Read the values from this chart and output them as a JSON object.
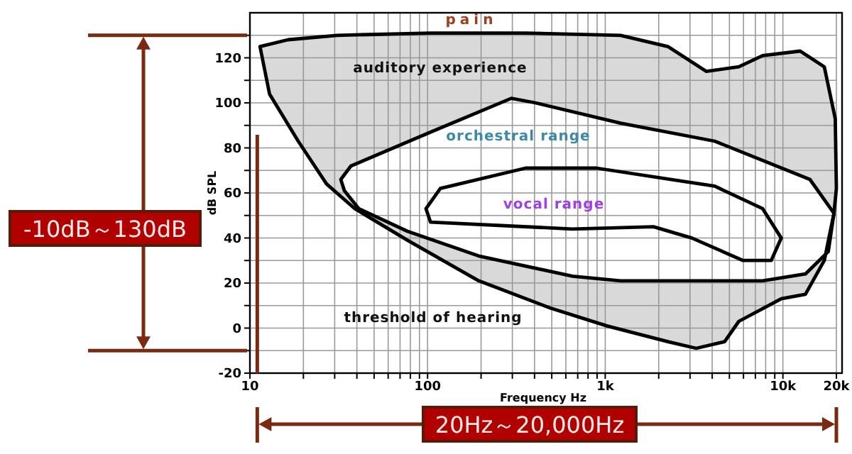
{
  "chart_data": {
    "type": "area",
    "xlabel": "Frequency Hz",
    "ylabel": "dB SPL",
    "log": "x",
    "grid": true,
    "xlim": [
      10,
      20000
    ],
    "ylim": [
      -20,
      140
    ],
    "xticks": [
      10,
      {
        "value": 20,
        "label": null
      },
      {
        "value": 30,
        "label": null
      },
      {
        "value": 40,
        "label": null
      },
      {
        "value": 50,
        "label": null
      },
      {
        "value": 60,
        "label": null
      },
      {
        "value": 70,
        "label": null
      },
      {
        "value": 80,
        "label": null
      },
      {
        "value": 90,
        "label": null
      },
      100,
      {
        "value": 200,
        "label": null
      },
      {
        "value": 300,
        "label": null
      },
      {
        "value": 400,
        "label": null
      },
      {
        "value": 500,
        "label": null
      },
      {
        "value": 600,
        "label": null
      },
      {
        "value": 700,
        "label": null
      },
      {
        "value": 800,
        "label": null
      },
      {
        "value": 900,
        "label": null
      },
      {
        "value": 1000,
        "label": "1k"
      },
      {
        "value": 2000,
        "label": null
      },
      {
        "value": 3000,
        "label": null
      },
      {
        "value": 4000,
        "label": null
      },
      {
        "value": 5000,
        "label": null
      },
      {
        "value": 6000,
        "label": null
      },
      {
        "value": 7000,
        "label": null
      },
      {
        "value": 8000,
        "label": null
      },
      {
        "value": 9000,
        "label": null
      },
      {
        "value": 10000,
        "label": "10k"
      },
      {
        "value": 20000,
        "label": "20k"
      }
    ],
    "yticks": [
      -20,
      {
        "value": -10,
        "label": null
      },
      0,
      {
        "value": 10,
        "label": null
      },
      20,
      {
        "value": 30,
        "label": null
      },
      40,
      {
        "value": 50,
        "label": null
      },
      60,
      {
        "value": 70,
        "label": null
      },
      80,
      {
        "value": 90,
        "label": null
      },
      100,
      {
        "value": 110,
        "label": null
      },
      120,
      {
        "value": 130,
        "label": null
      }
    ],
    "series": [
      {
        "color": "#d9d9d9",
        "x": [
          11.4,
          12.9,
          18.7,
          27,
          39,
          77,
          194,
          488,
          1020,
          2250,
          3250,
          4700,
          5650,
          9800,
          13400,
          17100,
          19400,
          20000,
          19700,
          17100,
          12500,
          7700,
          5650,
          3700,
          2250,
          1220,
          356,
          104,
          31,
          16.4
        ],
        "values": [
          125,
          104,
          83,
          64,
          53,
          39,
          21,
          9,
          1,
          -6,
          -9,
          -6,
          3,
          13,
          15,
          30,
          51,
          62,
          93,
          116,
          123,
          121,
          116,
          114,
          125,
          130,
          131,
          131,
          130,
          128
        ]
      },
      {
        "color": "#ffffff",
        "x": [
          32.5,
          37,
          104,
          296,
          405,
          1220,
          4130,
          14200,
          19400,
          18000,
          13400,
          7700,
          1220,
          655,
          194,
          77,
          41,
          34
        ],
        "values": [
          66,
          72,
          87,
          102,
          100,
          91,
          83,
          66,
          51,
          34,
          24,
          21,
          21,
          23,
          32,
          43,
          53,
          61
        ]
      },
      {
        "color": "#ffffff",
        "x": [
          118,
          356,
          895,
          4130,
          7700,
          9800,
          8600,
          5970,
          3080,
          1870,
          655,
          104,
          98
        ],
        "values": [
          62,
          71,
          71,
          63,
          53,
          40,
          30,
          30,
          40,
          45,
          44,
          47,
          53
        ]
      }
    ],
    "ref_lines": [
      {
        "axis": "x",
        "value": 11,
        "color": "#7a2a10"
      }
    ],
    "annotations": [
      "pain",
      "auditory   experience",
      "orchestral range",
      "vocal range",
      "threshold of hearing",
      "-10dB～130dB",
      "20Hz～20,000Hz"
    ]
  }
}
